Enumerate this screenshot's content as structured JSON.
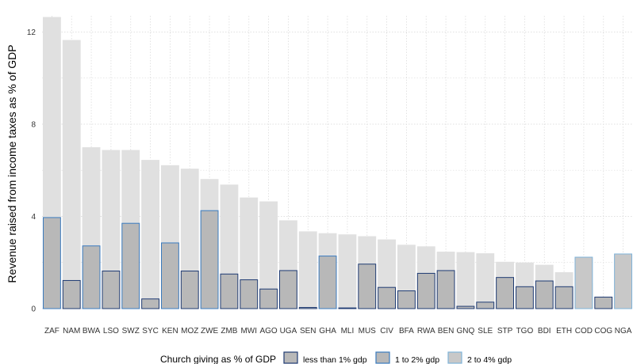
{
  "chart_data": {
    "type": "bar",
    "title": "",
    "xlabel": "",
    "ylabel": "Revenue raised from income taxes as % of GDP",
    "ylim": [
      0,
      12.7
    ],
    "yticks": [
      0,
      4,
      8,
      12
    ],
    "grid": true,
    "legend_position": "bottom",
    "categories": [
      "ZAF",
      "NAM",
      "BWA",
      "LSO",
      "SWZ",
      "SYC",
      "KEN",
      "MOZ",
      "ZWE",
      "ZMB",
      "MWI",
      "AGO",
      "UGA",
      "SEN",
      "GHA",
      "MLI",
      "MUS",
      "CIV",
      "BFA",
      "RWA",
      "BEN",
      "GNQ",
      "SLE",
      "STP",
      "TGO",
      "BDI",
      "ETH",
      "COD",
      "COG",
      "NGA"
    ],
    "series": [
      {
        "values": [
          12.65,
          11.65,
          7.0,
          6.88,
          6.88,
          6.45,
          6.22,
          6.07,
          5.62,
          5.38,
          4.82,
          4.65,
          3.83,
          3.35,
          3.27,
          3.22,
          3.14,
          3.0,
          2.77,
          2.7,
          2.47,
          2.45,
          2.4,
          2.03,
          2.0,
          1.9,
          1.58,
          1.1,
          0.5,
          2.37
        ]
      },
      {
        "values": [
          3.95,
          1.22,
          2.72,
          1.63,
          3.7,
          0.42,
          2.85,
          1.63,
          4.25,
          1.5,
          1.25,
          0.85,
          1.65,
          0.05,
          2.28,
          0.03,
          1.93,
          0.92,
          0.77,
          1.53,
          1.65,
          0.1,
          0.28,
          1.35,
          0.95,
          1.2,
          0.95,
          2.23,
          0.5,
          2.37
        ]
      }
    ],
    "church_giving_group": [
      "1 to 2% gdp",
      "less than 1% gdp",
      "1 to 2% gdp",
      "less than 1% gdp",
      "1 to 2% gdp",
      "less than 1% gdp",
      "1 to 2% gdp",
      "less than 1% gdp",
      "1 to 2% gdp",
      "less than 1% gdp",
      "less than 1% gdp",
      "less than 1% gdp",
      "less than 1% gdp",
      "less than 1% gdp",
      "1 to 2% gdp",
      "less than 1% gdp",
      "less than 1% gdp",
      "less than 1% gdp",
      "less than 1% gdp",
      "less than 1% gdp",
      "less than 1% gdp",
      "less than 1% gdp",
      "less than 1% gdp",
      "less than 1% gdp",
      "less than 1% gdp",
      "less than 1% gdp",
      "less than 1% gdp",
      "2 to 4% gdp",
      "less than 1% gdp",
      "2 to 4% gdp"
    ],
    "legend": {
      "title": "Church giving as % of GDP",
      "entries": [
        {
          "label": "less than 1% gdp",
          "color": "#1f3b73"
        },
        {
          "label": "1 to 2% gdp",
          "color": "#3a7bbf"
        },
        {
          "label": "2 to 4% gdp",
          "color": "#7fb3d9"
        }
      ]
    }
  },
  "colors": {
    "background_bar": "#e0e0e0",
    "inner_bar_fill": "#b8b8b8",
    "inner_bar_fill_top_group": "#c8c8c8",
    "grid": "#dcdcdc"
  }
}
